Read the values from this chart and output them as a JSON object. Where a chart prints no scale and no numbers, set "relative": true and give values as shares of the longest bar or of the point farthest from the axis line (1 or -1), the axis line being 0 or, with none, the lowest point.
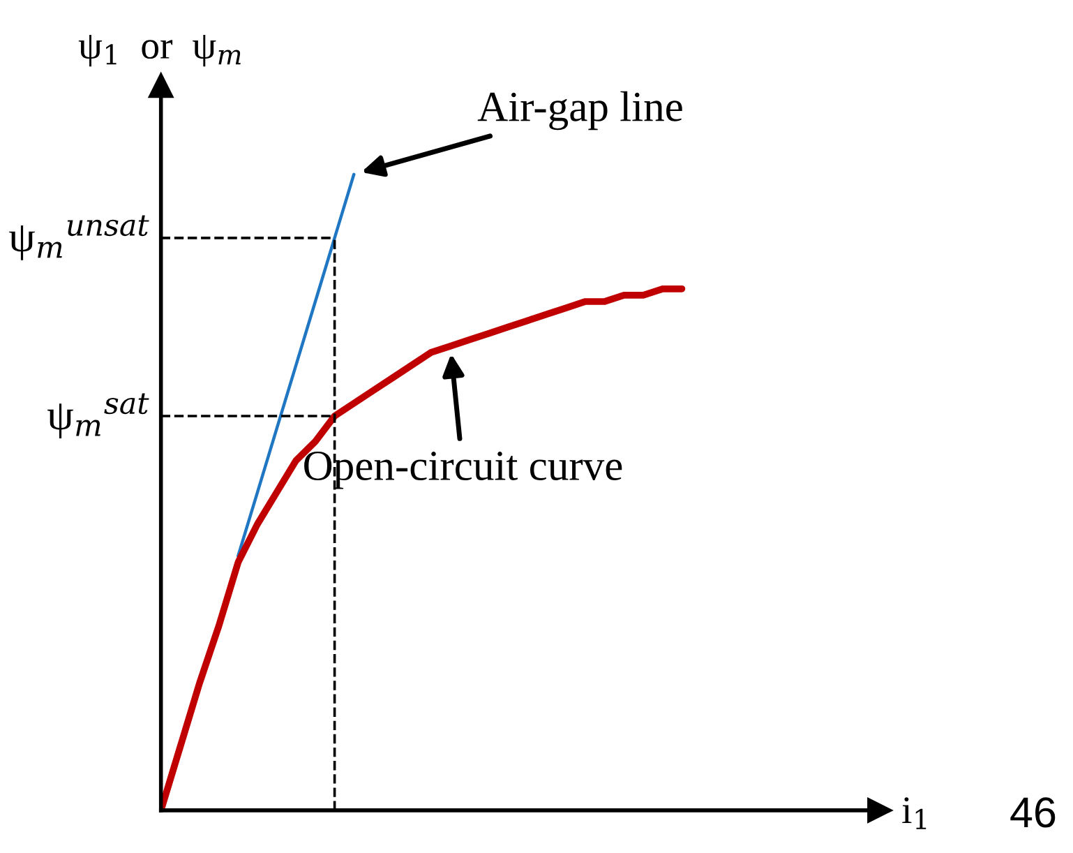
{
  "chart_data": {
    "type": "line",
    "relative": true,
    "ylabel": "ψ$_{1}$  or  ψ$_{m}$",
    "categories": [
      null,
      null,
      null,
      null,
      null,
      null,
      null,
      null,
      null,
      null,
      null,
      null,
      null,
      null,
      null,
      null,
      null,
      null,
      null,
      null,
      null,
      null,
      null,
      null,
      null,
      null,
      null,
      null
    ],
    "series": [
      {
        "color": "#1f77c4",
        "values": [
          null,
          null,
          null,
          null,
          0.4,
          0.5,
          0.6,
          0.7,
          0.8,
          0.9,
          1.0,
          null,
          null,
          null,
          null,
          null,
          null,
          null,
          null,
          null,
          null,
          null,
          null,
          null,
          null,
          null,
          null,
          null
        ]
      },
      {
        "color": "#c00000",
        "values": [
          0,
          0.1,
          0.2,
          0.29,
          0.39,
          0.45,
          0.5,
          0.55,
          0.58,
          0.62,
          0.64,
          0.66,
          0.68,
          0.7,
          0.72,
          0.73,
          0.74,
          0.75,
          0.76,
          0.77,
          0.78,
          0.79,
          0.8,
          0.8,
          0.81,
          0.81,
          0.82,
          0.82
        ]
      }
    ],
    "ref_lines": [
      {
        "axis": "y",
        "value": 0.9,
        "label": "ψ$_{m}$$^{unsat}$",
        "color": "#000000",
        "line_style": "dashed"
      },
      {
        "axis": "y",
        "value": 0.62,
        "label": "ψ$_{m}$$^{sat}$",
        "color": "#000000",
        "line_style": "dashed"
      }
    ],
    "annotations": [
      "Air-gap line",
      "Open-circuit curve",
      "i$_{1}$",
      "46"
    ],
    "marker": "none",
    "line_style": "solid"
  }
}
